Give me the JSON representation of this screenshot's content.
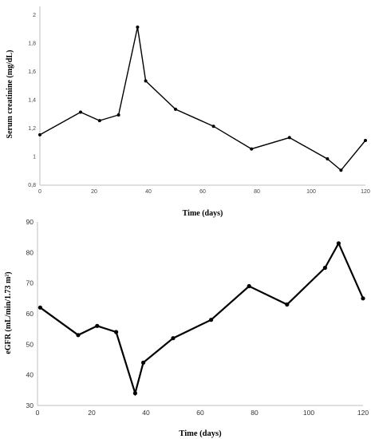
{
  "chart_data": [
    {
      "type": "line",
      "title": "",
      "xlabel": "Time (days)",
      "ylabel": "Serum creatinine (mg/dL)",
      "xlim": [
        0,
        120
      ],
      "ylim": [
        0.8,
        2
      ],
      "xticks": [
        "0",
        "20",
        "40",
        "60",
        "80",
        "100",
        "120"
      ],
      "yticks": [
        "0,8",
        "1",
        "1,2",
        "1,4",
        "1,6",
        "1,8",
        "2"
      ],
      "grid": false,
      "series": [
        {
          "x": [
            0,
            15,
            22,
            29,
            36,
            39,
            50,
            64,
            78,
            92,
            106,
            111,
            120
          ],
          "y": [
            1.15,
            1.31,
            1.25,
            1.29,
            1.91,
            1.53,
            1.33,
            1.21,
            1.05,
            1.13,
            0.98,
            0.9,
            1.11
          ]
        }
      ]
    },
    {
      "type": "line",
      "title": "",
      "xlabel": "Time (days)",
      "ylabel": "eGFR (mL/min/1.73 m²)",
      "xlim": [
        0,
        120
      ],
      "ylim": [
        30,
        90
      ],
      "xticks": [
        "0",
        "20",
        "40",
        "60",
        "80",
        "100",
        "120"
      ],
      "yticks": [
        "30",
        "40",
        "50",
        "60",
        "70",
        "80",
        "90"
      ],
      "grid": false,
      "series": [
        {
          "x": [
            1,
            15,
            22,
            29,
            36,
            39,
            50,
            64,
            78,
            92,
            106,
            111,
            120
          ],
          "y": [
            62,
            53,
            56,
            54,
            34,
            44,
            52,
            58,
            69,
            63,
            75,
            83,
            65
          ]
        }
      ]
    }
  ]
}
